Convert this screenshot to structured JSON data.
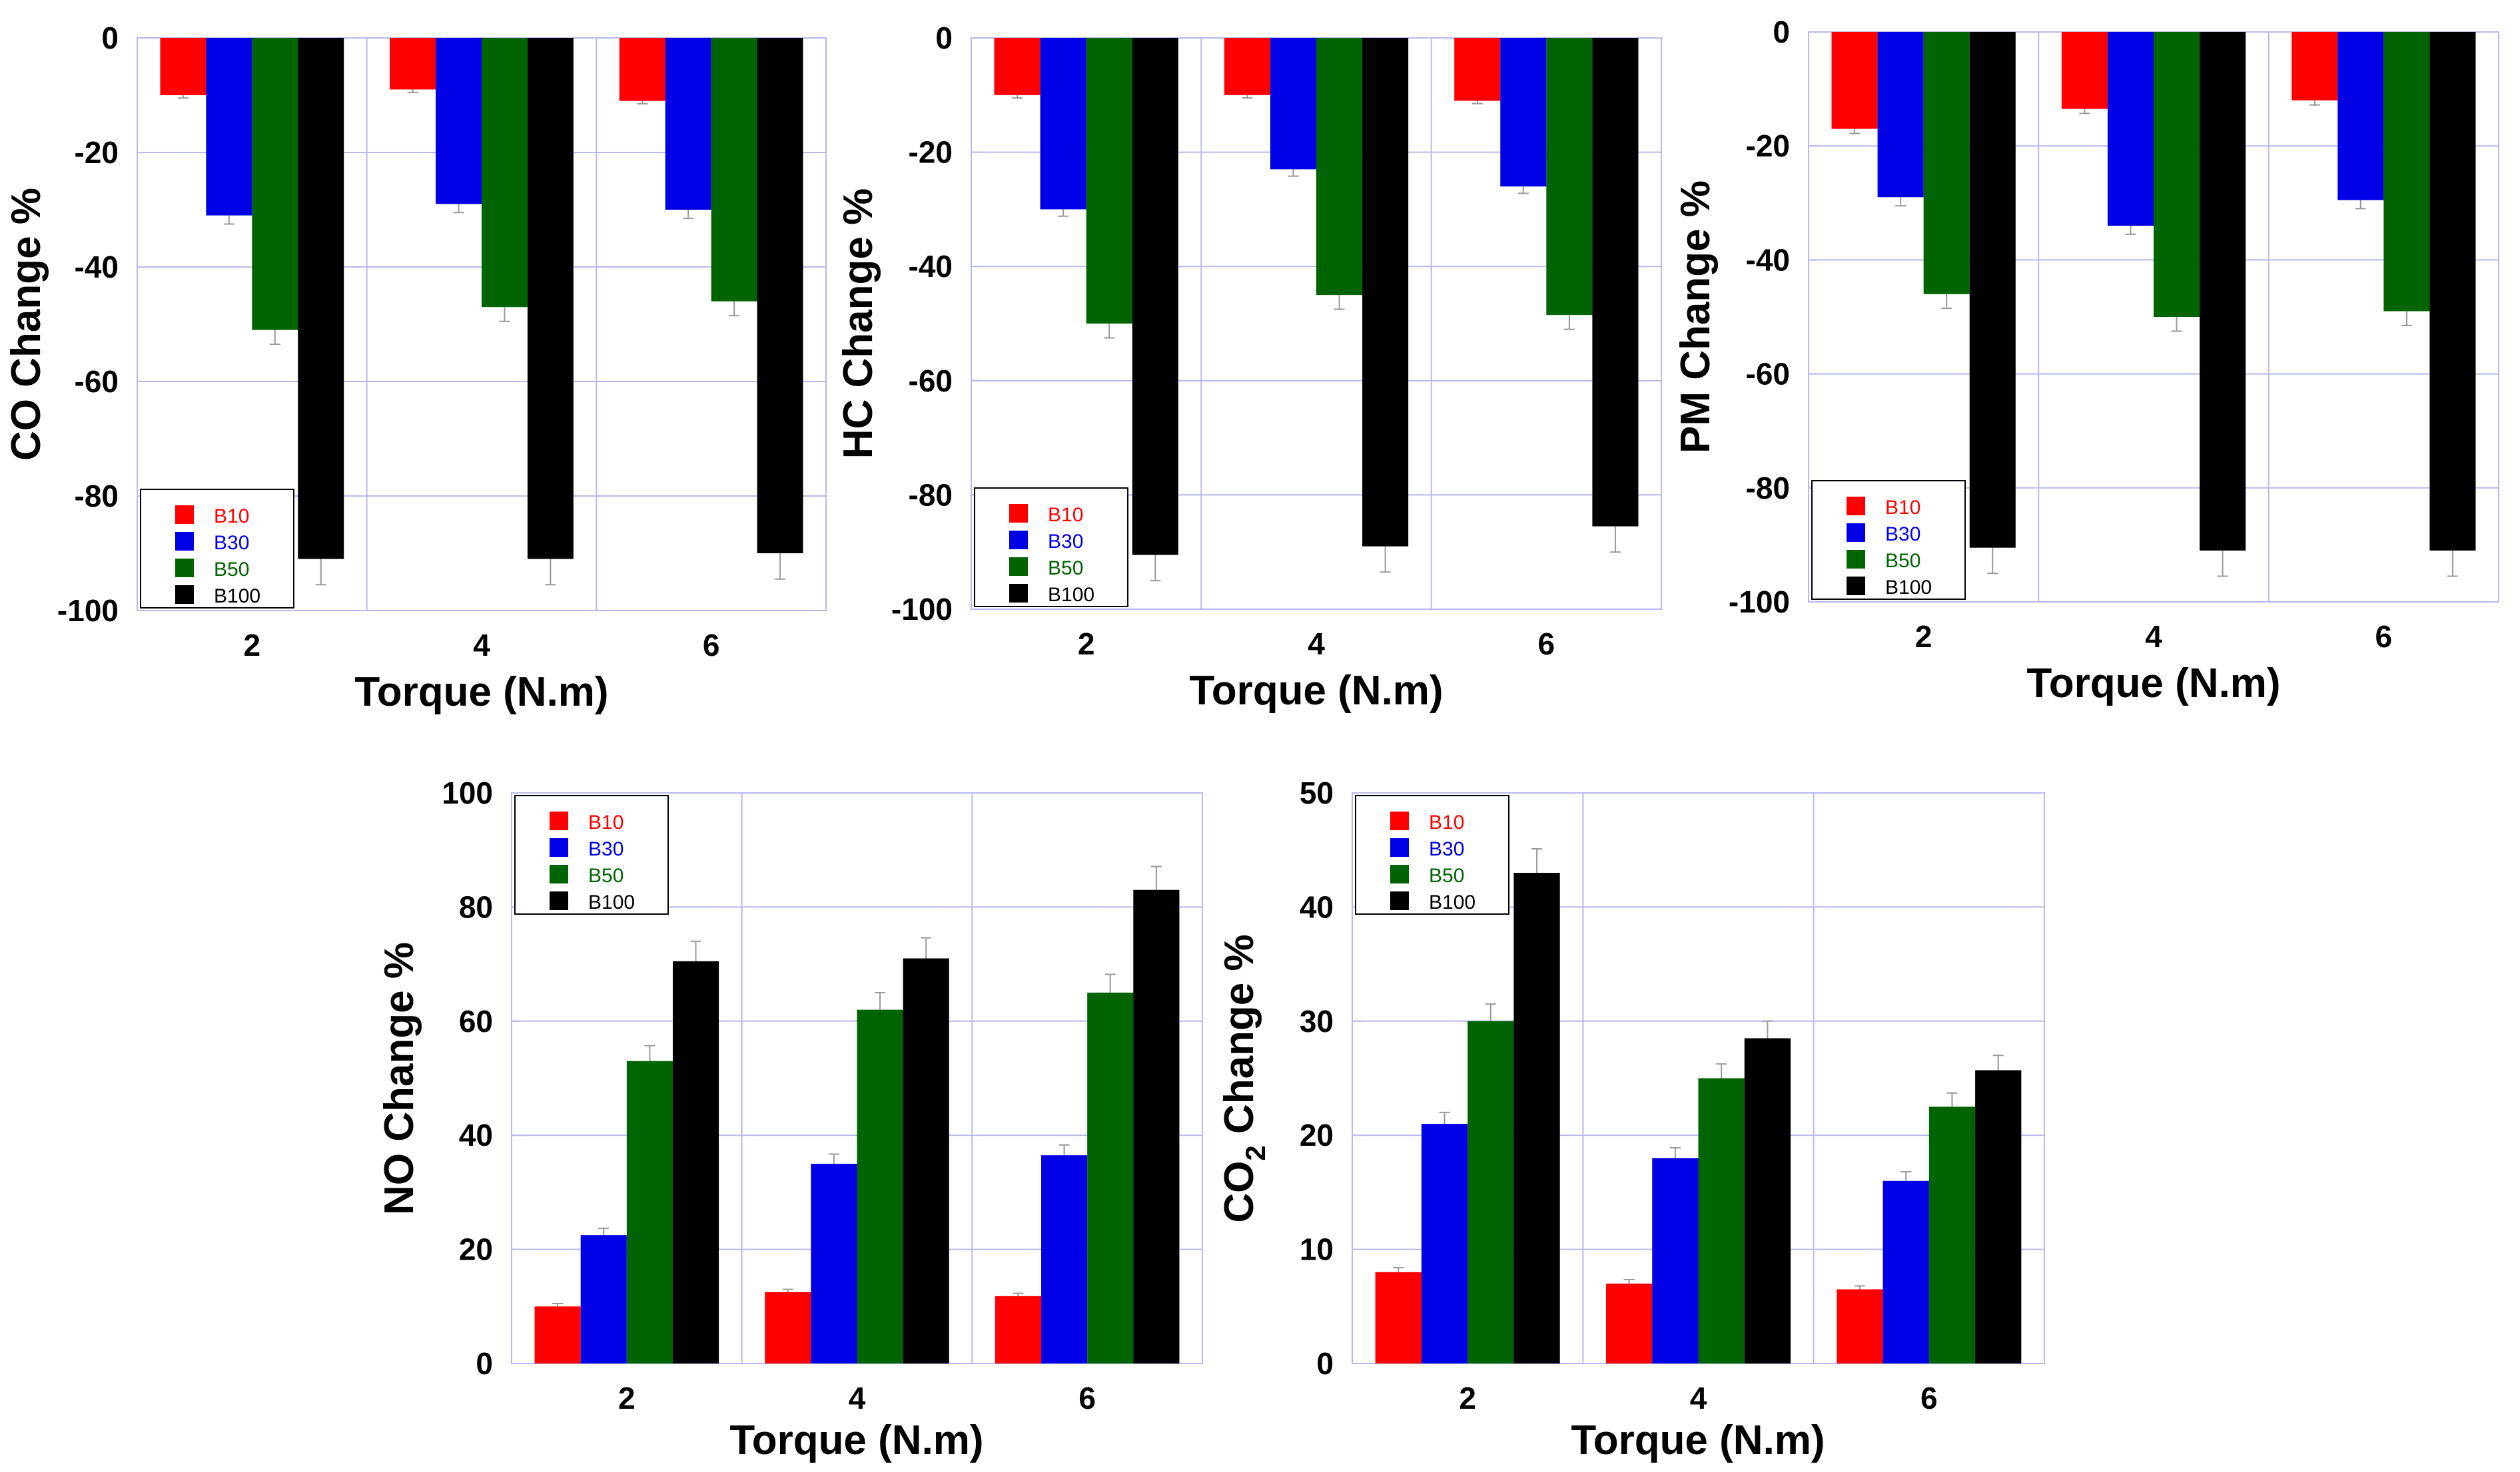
{
  "colors": {
    "B10": "#ff0000",
    "B30": "#0000e6",
    "B50": "#006400",
    "B100": "#000000",
    "grid": "#b8b8ee",
    "errorbar": "#999999"
  },
  "chart_data": [
    {
      "type": "bar",
      "id": "co",
      "title": "",
      "xlabel": "Torque (N.m)",
      "ylabel": "CO Change %",
      "categories": [
        "2",
        "4",
        "6"
      ],
      "yticks": [
        0,
        -20,
        -40,
        -60,
        -80,
        -100
      ],
      "ytick_labels": [
        "0",
        "-20",
        "-40",
        "-60",
        "-80",
        "-100"
      ],
      "ylim": [
        -100,
        0
      ],
      "legend": {
        "position": "bottom-left",
        "labels": [
          "B10",
          "B30",
          "B50",
          "B100"
        ]
      },
      "series": [
        {
          "name": "B10",
          "values": [
            -10,
            -9,
            -11
          ],
          "errors": [
            0.5,
            0.5,
            0.5
          ]
        },
        {
          "name": "B30",
          "values": [
            -31,
            -29,
            -30
          ],
          "errors": [
            1.5,
            1.5,
            1.5
          ]
        },
        {
          "name": "B50",
          "values": [
            -51,
            -47,
            -46
          ],
          "errors": [
            2.5,
            2.5,
            2.5
          ]
        },
        {
          "name": "B100",
          "values": [
            -91,
            -91,
            -90
          ],
          "errors": [
            4.5,
            4.5,
            4.5
          ]
        }
      ]
    },
    {
      "type": "bar",
      "id": "hc",
      "title": "",
      "xlabel": "Torque (N.m)",
      "ylabel": "HC Change %",
      "categories": [
        "2",
        "4",
        "6"
      ],
      "yticks": [
        0,
        -20,
        -40,
        -60,
        -80,
        -100
      ],
      "ytick_labels": [
        "0",
        "-20",
        "-40",
        "-60",
        "-80",
        "-100"
      ],
      "ylim": [
        -100,
        0
      ],
      "legend": {
        "position": "bottom-left",
        "labels": [
          "B10",
          "B30",
          "B50",
          "B100"
        ]
      },
      "series": [
        {
          "name": "B10",
          "values": [
            -10,
            -10,
            -11
          ],
          "errors": [
            0.5,
            0.5,
            0.5
          ]
        },
        {
          "name": "B30",
          "values": [
            -30,
            -23,
            -26
          ],
          "errors": [
            1.2,
            1.2,
            1.2
          ]
        },
        {
          "name": "B50",
          "values": [
            -50,
            -45,
            -48.5
          ],
          "errors": [
            2.5,
            2.5,
            2.5
          ]
        },
        {
          "name": "B100",
          "values": [
            -90.5,
            -89,
            -85.5
          ],
          "errors": [
            4.5,
            4.5,
            4.5
          ]
        }
      ]
    },
    {
      "type": "bar",
      "id": "pm",
      "title": "",
      "xlabel": "Torque (N.m)",
      "ylabel": "PM Change %",
      "categories": [
        "2",
        "4",
        "6"
      ],
      "yticks": [
        0,
        -20,
        -40,
        -60,
        -80,
        -100
      ],
      "ytick_labels": [
        "0",
        "-20",
        "-40",
        "-60",
        "-80",
        "-100"
      ],
      "ylim": [
        -100,
        0
      ],
      "legend": {
        "position": "bottom-left",
        "labels": [
          "B10",
          "B30",
          "B50",
          "B100"
        ]
      },
      "series": [
        {
          "name": "B10",
          "values": [
            -17,
            -13.5,
            -12
          ],
          "errors": [
            0.8,
            0.8,
            0.8
          ]
        },
        {
          "name": "B30",
          "values": [
            -29,
            -34,
            -29.5
          ],
          "errors": [
            1.5,
            1.5,
            1.5
          ]
        },
        {
          "name": "B50",
          "values": [
            -46,
            -50,
            -49
          ],
          "errors": [
            2.5,
            2.5,
            2.5
          ]
        },
        {
          "name": "B100",
          "values": [
            -90.5,
            -91,
            -91
          ],
          "errors": [
            4.5,
            4.5,
            4.5
          ]
        }
      ]
    },
    {
      "type": "bar",
      "id": "no",
      "title": "",
      "xlabel": "Torque (N.m)",
      "ylabel": "NO Change %",
      "categories": [
        "2",
        "4",
        "6"
      ],
      "yticks": [
        0,
        20,
        40,
        60,
        80,
        100
      ],
      "ytick_labels": [
        "0",
        "20",
        "40",
        "60",
        "80",
        "100"
      ],
      "ylim": [
        0,
        100
      ],
      "legend": {
        "position": "top-left",
        "labels": [
          "B10",
          "B30",
          "B50",
          "B100"
        ]
      },
      "series": [
        {
          "name": "B10",
          "values": [
            10,
            12.5,
            11.8
          ],
          "errors": [
            0.5,
            0.5,
            0.5
          ]
        },
        {
          "name": "B30",
          "values": [
            22.5,
            35,
            36.5
          ],
          "errors": [
            1.2,
            1.7,
            1.8
          ]
        },
        {
          "name": "B50",
          "values": [
            53,
            62,
            65
          ],
          "errors": [
            2.7,
            3.0,
            3.2
          ]
        },
        {
          "name": "B100",
          "values": [
            70.5,
            71,
            83
          ],
          "errors": [
            3.5,
            3.6,
            4.1
          ]
        }
      ]
    },
    {
      "type": "bar",
      "id": "co2",
      "title": "",
      "xlabel": "Torque (N.m)",
      "ylabel": "CO",
      "ylabel_sub": "2",
      "ylabel_suffix": " Change %",
      "categories": [
        "2",
        "4",
        "6"
      ],
      "yticks": [
        0,
        10,
        20,
        30,
        40,
        50
      ],
      "ytick_labels": [
        "0",
        "10",
        "20",
        "30",
        "40",
        "50"
      ],
      "ylim": [
        0,
        50
      ],
      "legend": {
        "position": "top-left",
        "labels": [
          "B10",
          "B30",
          "B50",
          "B100"
        ]
      },
      "series": [
        {
          "name": "B10",
          "values": [
            8,
            7,
            6.5
          ],
          "errors": [
            0.4,
            0.35,
            0.3
          ]
        },
        {
          "name": "B30",
          "values": [
            21,
            18,
            16
          ],
          "errors": [
            1.0,
            0.9,
            0.8
          ]
        },
        {
          "name": "B50",
          "values": [
            30,
            25,
            22.5
          ],
          "errors": [
            1.5,
            1.25,
            1.2
          ]
        },
        {
          "name": "B100",
          "values": [
            43,
            28.5,
            25.7
          ],
          "errors": [
            2.1,
            1.5,
            1.3
          ]
        }
      ]
    }
  ]
}
